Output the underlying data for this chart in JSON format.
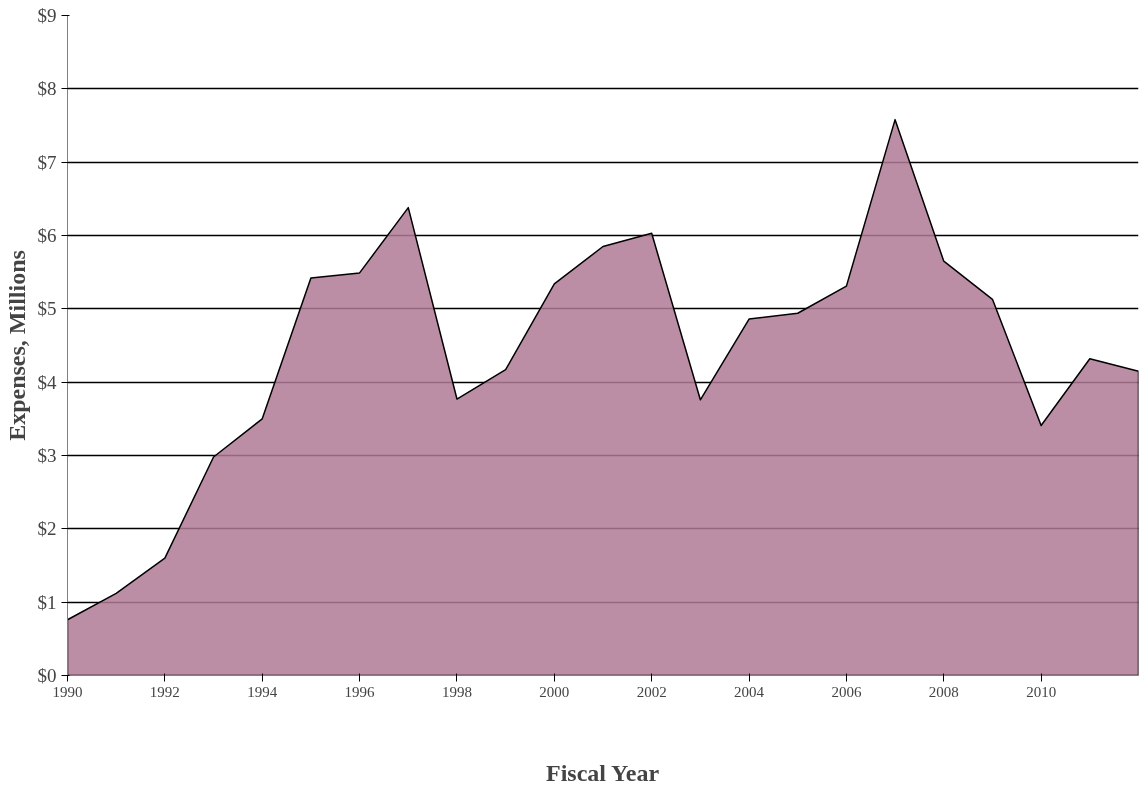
{
  "chart_data": {
    "type": "area",
    "xlabel": "Fiscal Year",
    "ylabel": "Expenses, Millions",
    "x": [
      1990,
      1991,
      1992,
      1993,
      1994,
      1995,
      1996,
      1997,
      1998,
      1999,
      2000,
      2001,
      2002,
      2003,
      2004,
      2005,
      2006,
      2007,
      2008,
      2009,
      2010,
      2011,
      2012
    ],
    "series": [
      {
        "color": "#b07a96",
        "values": [
          0.76,
          1.12,
          1.6,
          2.98,
          3.5,
          5.42,
          5.49,
          6.38,
          3.77,
          4.17,
          5.34,
          5.85,
          6.03,
          3.76,
          4.86,
          4.94,
          5.31,
          7.58,
          5.65,
          5.13,
          3.41,
          4.32,
          4.15
        ]
      }
    ],
    "xlim": [
      1990,
      2012
    ],
    "xticks": [
      1990,
      1992,
      1994,
      1996,
      1998,
      2000,
      2002,
      2004,
      2006,
      2008,
      2010
    ],
    "ylim": [
      0,
      9
    ],
    "yticks": [
      {
        "value": 0,
        "label": "$0"
      },
      {
        "value": 1,
        "label": "$1"
      },
      {
        "value": 2,
        "label": "$2"
      },
      {
        "value": 3,
        "label": "$3"
      },
      {
        "value": 4,
        "label": "$4"
      },
      {
        "value": 5,
        "label": "$5"
      },
      {
        "value": 6,
        "label": "$6"
      },
      {
        "value": 7,
        "label": "$7"
      },
      {
        "value": 8,
        "label": "$8"
      },
      {
        "value": 9,
        "label": "$9"
      }
    ],
    "grid": "y"
  }
}
